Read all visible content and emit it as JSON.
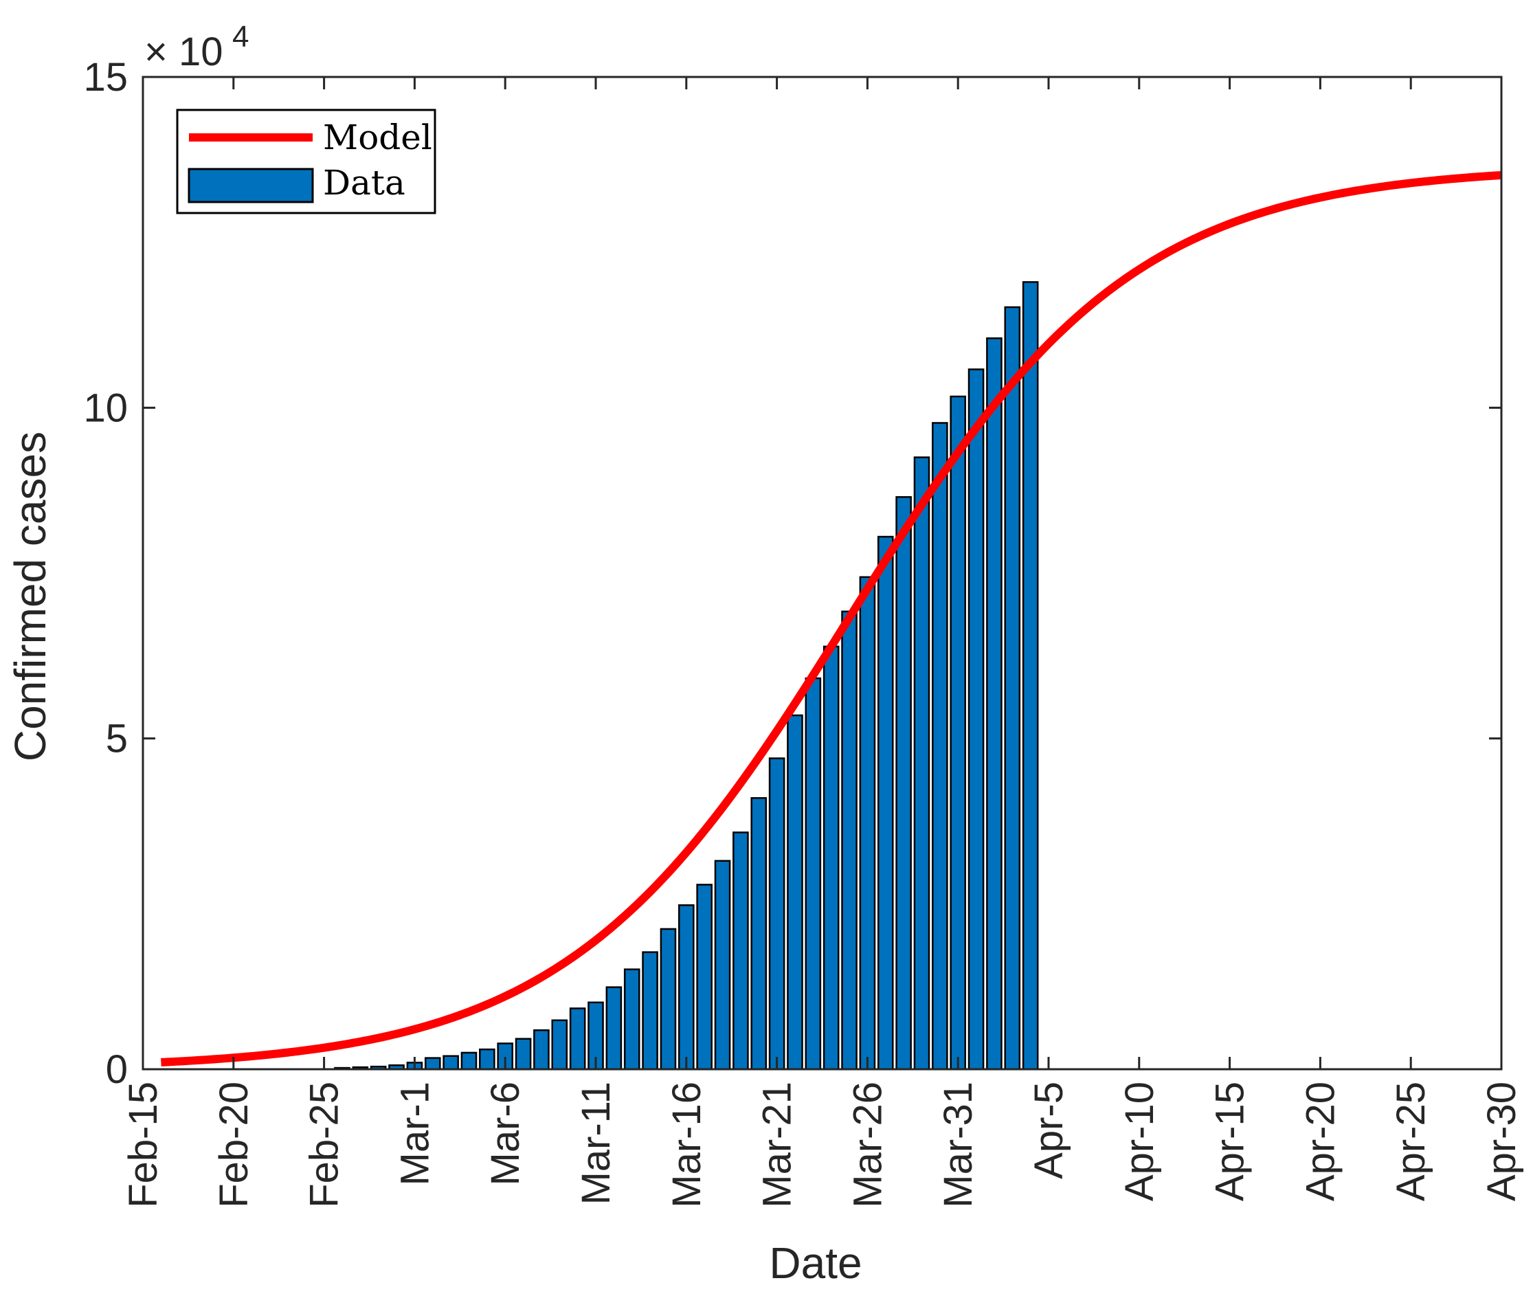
{
  "chart_data": {
    "type": "bar",
    "title": "",
    "xlabel": "Date",
    "ylabel": "Confirmed cases",
    "y_exponent_label": "× 10",
    "y_exponent_power": "4",
    "xlim": [
      "Feb-15",
      "Apr-30"
    ],
    "ylim": [
      0,
      150000
    ],
    "y_ticks": [
      0,
      50000,
      100000,
      150000
    ],
    "y_tick_labels": [
      "0",
      "5",
      "10",
      "15"
    ],
    "x_tick_labels": [
      "Feb-15",
      "Feb-20",
      "Feb-25",
      "Mar-1",
      "Mar-6",
      "Mar-11",
      "Mar-16",
      "Mar-21",
      "Mar-26",
      "Mar-31",
      "Apr-5",
      "Apr-10",
      "Apr-15",
      "Apr-20",
      "Apr-25",
      "Apr-30"
    ],
    "x_tick_days": [
      0,
      5,
      10,
      15,
      20,
      25,
      30,
      35,
      40,
      45,
      50,
      55,
      60,
      65,
      70,
      75
    ],
    "grid": false,
    "legend_position": "top-left",
    "colors": {
      "model": "#ff0000",
      "data": "#0072bd",
      "axes": "#262626",
      "bar_edge": "#000000"
    },
    "series": [
      {
        "name": "Data",
        "type": "bar",
        "x": [
          "Feb-16",
          "Feb-17",
          "Feb-18",
          "Feb-19",
          "Feb-20",
          "Feb-21",
          "Feb-22",
          "Feb-23",
          "Feb-24",
          "Feb-25",
          "Feb-26",
          "Feb-27",
          "Feb-28",
          "Feb-29",
          "Mar-1",
          "Mar-2",
          "Mar-3",
          "Mar-4",
          "Mar-5",
          "Mar-6",
          "Mar-7",
          "Mar-8",
          "Mar-9",
          "Mar-10",
          "Mar-11",
          "Mar-12",
          "Mar-13",
          "Mar-14",
          "Mar-15",
          "Mar-16",
          "Mar-17",
          "Mar-18",
          "Mar-19",
          "Mar-20",
          "Mar-21",
          "Mar-22",
          "Mar-23",
          "Mar-24",
          "Mar-25",
          "Mar-26",
          "Mar-27",
          "Mar-28",
          "Mar-29",
          "Mar-30",
          "Mar-31",
          "Apr-1",
          "Apr-2",
          "Apr-3",
          "Apr-4"
        ],
        "values": [
          0,
          0,
          0,
          0,
          0,
          0,
          0,
          0,
          0,
          0,
          200,
          300,
          400,
          600,
          1000,
          1700,
          2000,
          2500,
          3000,
          3900,
          4600,
          5900,
          7400,
          9200,
          10100,
          12400,
          15100,
          17700,
          21200,
          24800,
          27900,
          31500,
          35800,
          41000,
          47000,
          53500,
          59100,
          63900,
          69200,
          74400,
          80500,
          86500,
          92500,
          97700,
          101700,
          105800,
          110500,
          115200,
          119000
        ]
      },
      {
        "name": "Model",
        "type": "line",
        "x_start": "Feb-16",
        "x_end": "Apr-30",
        "k": 136500,
        "rate": 0.128,
        "midpoint": "Mar-25"
      }
    ]
  }
}
